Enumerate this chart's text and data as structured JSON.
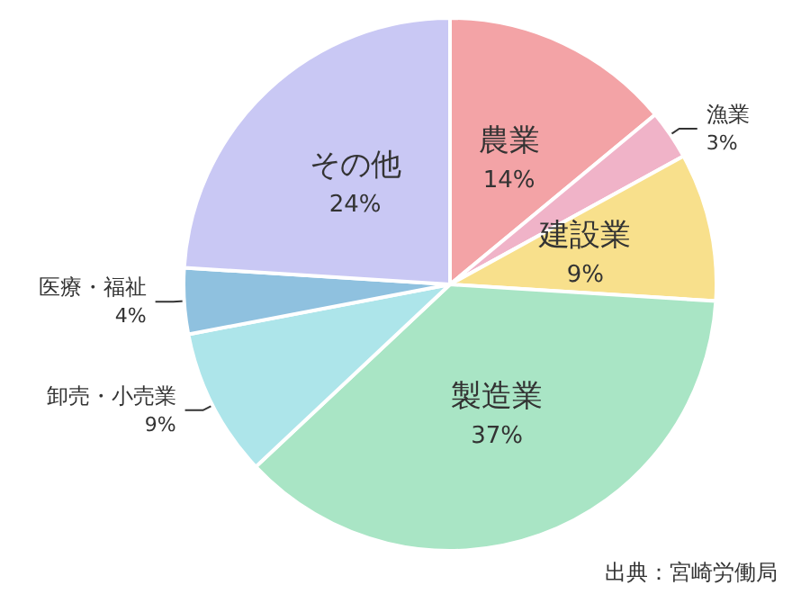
{
  "chart_data": {
    "type": "pie",
    "categories": [
      "農業",
      "漁業",
      "建設業",
      "製造業",
      "卸売・小売業",
      "医療・福祉",
      "その他"
    ],
    "values": [
      14,
      3,
      9,
      37,
      9,
      4,
      24
    ],
    "value_labels": [
      "14%",
      "3%",
      "9%",
      "37%",
      "9%",
      "4%",
      "24%"
    ],
    "colors": [
      "#f3a3a6",
      "#f0b3c8",
      "#f8e08c",
      "#a9e5c5",
      "#ade5ea",
      "#8fc1df",
      "#c9c8f4"
    ],
    "annotations": [
      "出典：宮崎労働局"
    ]
  }
}
